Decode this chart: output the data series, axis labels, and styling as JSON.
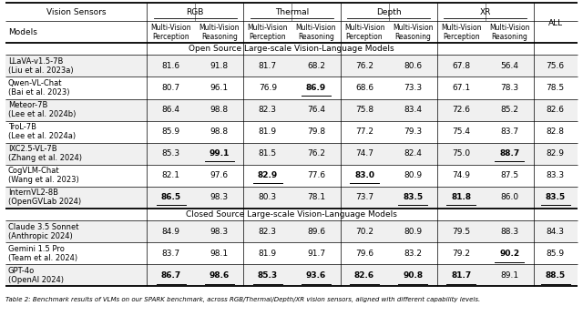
{
  "open_source_section_title": "Open Source Large-scale Vision-Language Models",
  "closed_source_section_title": "Closed Source Large-scale Vision-Language Models",
  "caption": "Table 2: Benchmark results of VLMs on our SPARK benchmark, across RGB/Thermal/Depth/XR vision sensors, aligned with different capability levels.",
  "open_source_models": [
    "LLaVA-v1.5-7B\n(Liu et al. 2023a)",
    "Qwen-VL-Chat\n(Bai et al. 2023)",
    "Meteor-7B\n(Lee et al. 2024b)",
    "TroL-7B\n(Lee et al. 2024a)",
    "IXC2.5-VL-7B\n(Zhang et al. 2024)",
    "CogVLM-Chat\n(Wang et al. 2023)",
    "InternVL2-8B\n(OpenGVLab 2024)"
  ],
  "open_source_data": [
    [
      81.6,
      91.8,
      81.7,
      68.2,
      76.2,
      80.6,
      67.8,
      56.4,
      75.6
    ],
    [
      80.7,
      96.1,
      76.9,
      86.9,
      68.6,
      73.3,
      67.1,
      78.3,
      78.5
    ],
    [
      86.4,
      98.8,
      82.3,
      76.4,
      75.8,
      83.4,
      72.6,
      85.2,
      82.6
    ],
    [
      85.9,
      98.8,
      81.9,
      79.8,
      77.2,
      79.3,
      75.4,
      83.7,
      82.8
    ],
    [
      85.3,
      99.1,
      81.5,
      76.2,
      74.7,
      82.4,
      75.0,
      88.7,
      82.9
    ],
    [
      82.1,
      97.6,
      82.9,
      77.6,
      83.0,
      80.9,
      74.9,
      87.5,
      83.3
    ],
    [
      86.5,
      98.3,
      80.3,
      78.1,
      73.7,
      83.5,
      81.8,
      86.0,
      83.5
    ]
  ],
  "open_source_bold": [
    [
      false,
      false,
      false,
      false,
      false,
      false,
      false,
      false,
      false
    ],
    [
      false,
      false,
      false,
      true,
      false,
      false,
      false,
      false,
      false
    ],
    [
      false,
      false,
      false,
      false,
      false,
      false,
      false,
      false,
      false
    ],
    [
      false,
      false,
      false,
      false,
      false,
      false,
      false,
      false,
      false
    ],
    [
      false,
      true,
      false,
      false,
      false,
      false,
      false,
      true,
      false
    ],
    [
      false,
      false,
      true,
      false,
      true,
      false,
      false,
      false,
      false
    ],
    [
      true,
      false,
      false,
      false,
      false,
      true,
      true,
      false,
      true
    ]
  ],
  "open_source_underline": [
    [
      false,
      false,
      false,
      false,
      false,
      false,
      false,
      false,
      false
    ],
    [
      false,
      false,
      false,
      true,
      false,
      false,
      false,
      false,
      false
    ],
    [
      false,
      false,
      false,
      false,
      false,
      false,
      false,
      false,
      false
    ],
    [
      false,
      false,
      false,
      false,
      false,
      false,
      false,
      false,
      false
    ],
    [
      false,
      true,
      false,
      false,
      false,
      false,
      false,
      true,
      false
    ],
    [
      false,
      false,
      true,
      false,
      true,
      false,
      false,
      false,
      false
    ],
    [
      true,
      false,
      false,
      false,
      false,
      true,
      true,
      false,
      true
    ]
  ],
  "closed_source_models": [
    "Claude 3.5 Sonnet\n(Anthropic 2024)",
    "Gemini 1.5 Pro\n(Team et al. 2024)",
    "GPT-4o\n(OpenAI 2024)"
  ],
  "closed_source_data": [
    [
      84.9,
      98.3,
      82.3,
      89.6,
      70.2,
      80.9,
      79.5,
      88.3,
      84.3
    ],
    [
      83.7,
      98.1,
      81.9,
      91.7,
      79.6,
      83.2,
      79.2,
      90.2,
      85.9
    ],
    [
      86.7,
      98.6,
      85.3,
      93.6,
      82.6,
      90.8,
      81.7,
      89.1,
      88.5
    ]
  ],
  "closed_source_bold": [
    [
      false,
      false,
      false,
      false,
      false,
      false,
      false,
      false,
      false
    ],
    [
      false,
      false,
      false,
      false,
      false,
      false,
      false,
      true,
      false
    ],
    [
      true,
      true,
      true,
      true,
      true,
      true,
      true,
      false,
      true
    ]
  ],
  "closed_source_underline": [
    [
      false,
      false,
      false,
      false,
      false,
      false,
      false,
      false,
      false
    ],
    [
      false,
      false,
      false,
      false,
      false,
      false,
      false,
      true,
      false
    ],
    [
      true,
      true,
      true,
      true,
      true,
      true,
      true,
      false,
      true
    ]
  ],
  "col_group_labels": [
    "RGB",
    "Thermal",
    "Depth",
    "XR"
  ],
  "sub_col_labels": [
    "Multi-Vision\nPerception",
    "Multi-Vision\nReasoning"
  ],
  "bg_color_odd": "#f0f0f0",
  "bg_color_even": "#ffffff",
  "fontsize_header": 6.5,
  "fontsize_subheader": 6.0,
  "fontsize_data": 6.5,
  "fontsize_model": 6.0,
  "fontsize_section": 6.5,
  "fontsize_caption": 5.0
}
